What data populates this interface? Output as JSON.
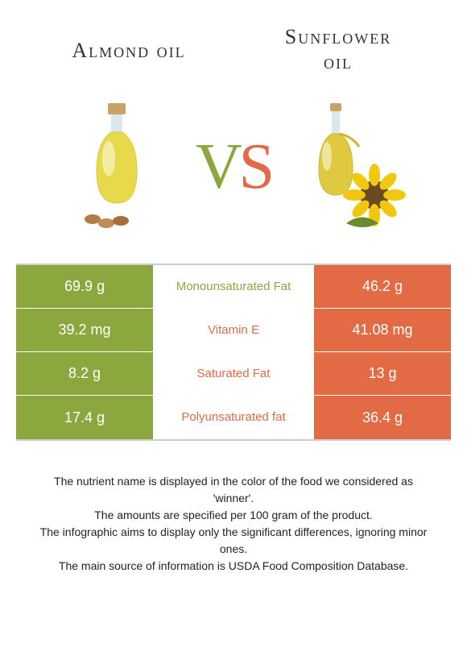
{
  "titles": {
    "left": "Almond oil",
    "right_line1": "Sunflower",
    "right_line2": "oil"
  },
  "vs": {
    "v": "V",
    "s": "S"
  },
  "colors": {
    "left": "#8aa83d",
    "right": "#e26a45",
    "divider": "#cccccc",
    "text": "#222222",
    "cell_text": "#ffffff"
  },
  "rows": [
    {
      "left": "69.9 g",
      "mid": "Monounsaturated Fat",
      "right": "46.2 g",
      "winner": "left"
    },
    {
      "left": "39.2 mg",
      "mid": "Vitamin E",
      "right": "41.08 mg",
      "winner": "right"
    },
    {
      "left": "8.2 g",
      "mid": "Saturated Fat",
      "right": "13 g",
      "winner": "right"
    },
    {
      "left": "17.4 g",
      "mid": "Polyunsaturated fat",
      "right": "36.4 g",
      "winner": "right"
    }
  ],
  "footnotes": [
    "The nutrient name is displayed in the color of the food we considered as 'winner'.",
    "The amounts are specified per 100 gram of the product.",
    "The infographic aims to display only the significant differences, ignoring minor ones.",
    "The main source of information is USDA Food Composition Database."
  ]
}
